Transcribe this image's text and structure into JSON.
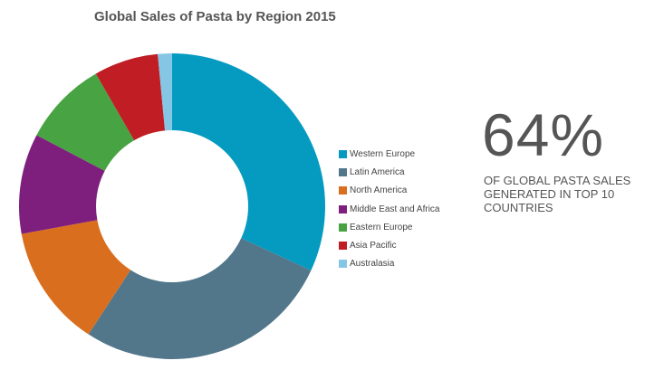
{
  "title": "Global Sales of Pasta by Region 2015",
  "stat": {
    "value": "64%",
    "caption_lines": [
      "OF GLOBAL PASTA SALES",
      "GENERATED IN TOP 10",
      "COUNTRIES"
    ]
  },
  "legend": [
    {
      "label": "Western Europe",
      "color": "#059bc1"
    },
    {
      "label": "Latin America",
      "color": "#52778b"
    },
    {
      "label": "North America",
      "color": "#d96f1e"
    },
    {
      "label": "Middle East and Africa",
      "color": "#7f1f7d"
    },
    {
      "label": "Eastern Europe",
      "color": "#48a342"
    },
    {
      "label": "Asia Pacific",
      "color": "#c01d24"
    },
    {
      "label": "Australasia",
      "color": "#86c6e5"
    }
  ],
  "chart_data": {
    "type": "pie",
    "variant": "donut",
    "title": "Global Sales of Pasta by Region 2015",
    "categories": [
      "Western Europe",
      "Latin America",
      "North America",
      "Middle East and Africa",
      "Eastern Europe",
      "Asia Pacific",
      "Australasia"
    ],
    "values": [
      31.9,
      27.3,
      12.9,
      10.6,
      9.0,
      6.8,
      1.5
    ],
    "unit": "% of global sales (estimated from slice angles)",
    "colors": [
      "#059bc1",
      "#52778b",
      "#d96f1e",
      "#7f1f7d",
      "#48a342",
      "#c01d24",
      "#86c6e5"
    ],
    "start_angle": "12 o'clock, clockwise",
    "legend_position": "right",
    "annotation": "64% OF GLOBAL PASTA SALES GENERATED IN TOP 10 COUNTRIES"
  }
}
